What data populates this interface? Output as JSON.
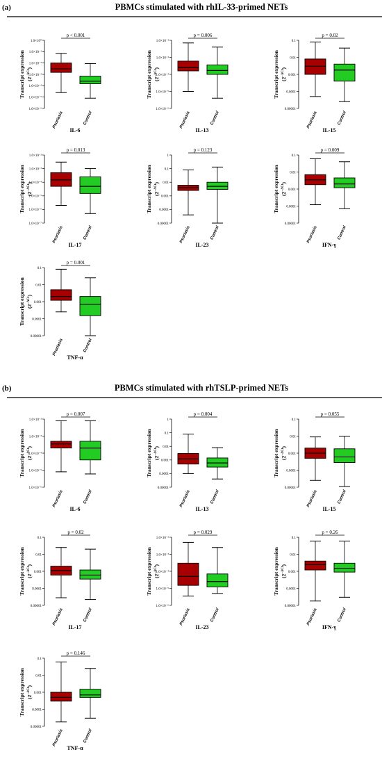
{
  "panels": [
    {
      "label": "(a)",
      "title": "PBMCs  stimulated with rhIL-33-primed NETs"
    },
    {
      "label": "(b)",
      "title": "PBMCs  stimulated with rhTSLP-primed NETs"
    }
  ],
  "chart_data": [
    {
      "type": "box",
      "title": "IL-6",
      "annotation": "p < 0.001",
      "ylabel": "Transcript expression",
      "ylabel_unit": [
        "(2",
        "−ΔCt",
        ")"
      ],
      "categories": [
        "Psoriasis",
        "Control"
      ],
      "colors": [
        "#a80000",
        "#22cc22"
      ],
      "log_scale": true,
      "low": [
        2.5e-05,
        8e-06
      ],
      "q1": [
        0.0015,
        0.00015
      ],
      "median": [
        0.003,
        0.00025
      ],
      "q3": [
        0.01,
        0.0007
      ],
      "high": [
        0.07,
        0.009
      ],
      "ylim": [
        1e-06,
        1
      ],
      "yticks": [
        {
          "value": 1,
          "label": "1.0×10⁰"
        },
        {
          "value": 0.1,
          "label": "1.0×10⁻¹"
        },
        {
          "value": 0.01,
          "label": "1.0×10⁻²"
        },
        {
          "value": 0.001,
          "label": "1.0×10⁻³"
        },
        {
          "value": 0.0001,
          "label": "1.0×10⁻⁴"
        },
        {
          "value": 1e-05,
          "label": "1.0×10⁻⁵"
        },
        {
          "value": 1e-06,
          "label": "1.0×10⁻⁶"
        }
      ]
    },
    {
      "type": "box",
      "title": "IL-13",
      "annotation": "p = 0.006",
      "ylabel": "Transcript expression",
      "ylabel_unit": [
        "(2",
        "−ΔCt",
        ")"
      ],
      "categories": [
        "Psoriasis",
        "Control"
      ],
      "colors": [
        "#a80000",
        "#22cc22"
      ],
      "log_scale": true,
      "low": [
        1e-05,
        4e-06
      ],
      "q1": [
        0.00016,
        0.0001
      ],
      "median": [
        0.00025,
        0.00017
      ],
      "q3": [
        0.0006,
        0.00036
      ],
      "high": [
        0.007,
        0.004
      ],
      "ylim": [
        1e-06,
        0.01
      ],
      "yticks": [
        {
          "value": 0.01,
          "label": "1.0×10⁻²"
        },
        {
          "value": 0.001,
          "label": "1.0×10⁻³"
        },
        {
          "value": 0.0001,
          "label": "1.0×10⁻⁴"
        },
        {
          "value": 1e-05,
          "label": "1.0×10⁻⁵"
        },
        {
          "value": 1e-06,
          "label": "1.0×10⁻⁶"
        }
      ]
    },
    {
      "type": "box",
      "title": "IL-15",
      "annotation": "p = 0.02",
      "ylabel": "Transcript expression",
      "ylabel_unit": [
        "(2",
        "−ΔCt",
        ")"
      ],
      "categories": [
        "Psoriasis",
        "Control"
      ],
      "colors": [
        "#a80000",
        "#22cc22"
      ],
      "log_scale": true,
      "low": [
        5e-05,
        2.5e-05
      ],
      "q1": [
        0.001,
        0.0004
      ],
      "median": [
        0.003,
        0.0018
      ],
      "q3": [
        0.008,
        0.004
      ],
      "high": [
        0.08,
        0.035
      ],
      "ylim": [
        1e-05,
        0.1
      ],
      "yticks": [
        0.1,
        0.01,
        0.001,
        0.0001,
        1e-05
      ]
    },
    {
      "type": "box",
      "title": "IL-17",
      "annotation": "p = 0.013",
      "ylabel": "Transcript expression",
      "ylabel_unit": [
        "(2",
        "−ΔCt",
        ")"
      ],
      "categories": [
        "Psoriasis",
        "Control"
      ],
      "colors": [
        "#a80000",
        "#22cc22"
      ],
      "log_scale": true,
      "low": [
        2e-06,
        5e-07
      ],
      "q1": [
        5e-05,
        1.5e-05
      ],
      "median": [
        0.00015,
        5e-05
      ],
      "q3": [
        0.0005,
        0.00025
      ],
      "high": [
        0.003,
        0.001
      ],
      "ylim": [
        1e-07,
        0.01
      ],
      "yticks": [
        {
          "value": 0.01,
          "label": "1.0×10⁻²"
        },
        {
          "value": 0.001,
          "label": "1.0×10⁻³"
        },
        {
          "value": 0.0001,
          "label": "1.0×10⁻⁴"
        },
        {
          "value": 1e-05,
          "label": "1.0×10⁻⁵"
        },
        {
          "value": 1e-06,
          "label": "1.0×10⁻⁶"
        },
        {
          "value": 1e-07,
          "label": "1.0×10⁻⁷"
        }
      ]
    },
    {
      "type": "box",
      "title": "IL-23",
      "annotation": "p = 0.123",
      "ylabel": "Transcript expression",
      "ylabel_unit": [
        "(2",
        "−ΔCt",
        ")"
      ],
      "categories": [
        "Psoriasis",
        "Control"
      ],
      "colors": [
        "#a80000",
        "#22cc22"
      ],
      "log_scale": true,
      "low": [
        4e-05,
        1e-05
      ],
      "q1": [
        0.0025,
        0.003
      ],
      "median": [
        0.004,
        0.005
      ],
      "q3": [
        0.006,
        0.01
      ],
      "high": [
        0.08,
        0.13
      ],
      "ylim": [
        1e-05,
        1
      ],
      "yticks": [
        1,
        0.1,
        0.01,
        0.001,
        0.0001,
        1e-05
      ]
    },
    {
      "type": "box",
      "title": "IFN-γ",
      "annotation": "p = 0.009",
      "ylabel": "Transcript expression",
      "ylabel_unit": [
        "(2",
        "−ΔCt",
        ")"
      ],
      "categories": [
        "Psoriasis",
        "Control"
      ],
      "colors": [
        "#a80000",
        "#22cc22"
      ],
      "log_scale": true,
      "low": [
        0.00012,
        7e-05
      ],
      "q1": [
        0.0018,
        0.0012
      ],
      "median": [
        0.0035,
        0.002
      ],
      "q3": [
        0.007,
        0.0045
      ],
      "high": [
        0.06,
        0.04
      ],
      "ylim": [
        1e-05,
        0.1
      ],
      "yticks": [
        0.1,
        0.01,
        0.001,
        0.0001,
        1e-05
      ]
    },
    {
      "type": "box",
      "title": "TNF-α",
      "annotation": "p = 0.001",
      "ylabel": "Transcript expression",
      "ylabel_unit": [
        "(2",
        "−ΔCt",
        ")"
      ],
      "categories": [
        "Psoriasis",
        "Control"
      ],
      "colors": [
        "#a80000",
        "#22cc22"
      ],
      "log_scale": true,
      "low": [
        0.00025,
        1e-05
      ],
      "q1": [
        0.0012,
        0.00015
      ],
      "median": [
        0.002,
        0.0007
      ],
      "q3": [
        0.005,
        0.002
      ],
      "high": [
        0.08,
        0.025
      ],
      "ylim": [
        1e-05,
        0.1
      ],
      "yticks": [
        0.1,
        0.01,
        0.001,
        0.0001,
        1e-05
      ]
    },
    {
      "type": "box",
      "title": "IL-6",
      "annotation": "p = 0.007",
      "ylabel": "Transcript expression",
      "ylabel_unit": [
        "(2",
        "−ΔCt",
        ")"
      ],
      "categories": [
        "Psoriasis",
        "Control"
      ],
      "colors": [
        "#a80000",
        "#22cc22"
      ],
      "log_scale": true,
      "low": [
        8e-06,
        6e-06
      ],
      "q1": [
        0.0002,
        4e-05
      ],
      "median": [
        0.00035,
        0.0002
      ],
      "q3": [
        0.0005,
        0.0005
      ],
      "high": [
        0.008,
        0.008
      ],
      "ylim": [
        1e-06,
        0.01
      ],
      "yticks": [
        {
          "value": 0.01,
          "label": "1.0×10⁻²"
        },
        {
          "value": 0.001,
          "label": "1.0×10⁻³"
        },
        {
          "value": 0.0001,
          "label": "1.0×10⁻⁴"
        },
        {
          "value": 1e-05,
          "label": "1.0×10⁻⁵"
        },
        {
          "value": 1e-06,
          "label": "1.0×10⁻⁶"
        }
      ]
    },
    {
      "type": "box",
      "title": "IL-13",
      "annotation": "p = 0.004",
      "ylabel": "Transcript expression",
      "ylabel_unit": [
        "(2",
        "−ΔCt",
        ")"
      ],
      "categories": [
        "Psoriasis",
        "Control"
      ],
      "colors": [
        "#a80000",
        "#22cc22"
      ],
      "log_scale": true,
      "low": [
        0.0001,
        4e-05
      ],
      "q1": [
        0.0005,
        0.0003
      ],
      "median": [
        0.0012,
        0.0006
      ],
      "q3": [
        0.003,
        0.0014
      ],
      "high": [
        0.08,
        0.008
      ],
      "ylim": [
        1e-05,
        1
      ],
      "yticks": [
        1,
        0.1,
        0.01,
        0.001,
        0.0001,
        1e-05
      ]
    },
    {
      "type": "box",
      "title": "IL-15",
      "annotation": "p = 0.055",
      "ylabel": "Transcript expression",
      "ylabel_unit": [
        "(2",
        "−ΔCt",
        ")"
      ],
      "categories": [
        "Psoriasis",
        "Control"
      ],
      "colors": [
        "#a80000",
        "#22cc22"
      ],
      "log_scale": true,
      "low": [
        2.5e-05,
        1.1e-05
      ],
      "q1": [
        0.0005,
        0.00028
      ],
      "median": [
        0.001,
        0.0006
      ],
      "q3": [
        0.002,
        0.0018
      ],
      "high": [
        0.009,
        0.01
      ],
      "ylim": [
        1e-05,
        0.1
      ],
      "yticks": [
        0.1,
        0.01,
        0.001,
        0.0001,
        1e-05
      ]
    },
    {
      "type": "box",
      "title": "IL-17",
      "annotation": "p = 0.02",
      "ylabel": "Transcript expression",
      "ylabel_unit": [
        "(2",
        "−ΔCt",
        ")"
      ],
      "categories": [
        "Psoriasis",
        "Control"
      ],
      "colors": [
        "#a80000",
        "#22cc22"
      ],
      "log_scale": true,
      "low": [
        2.8e-05,
        2.2e-05
      ],
      "q1": [
        0.0006,
        0.00035
      ],
      "median": [
        0.0011,
        0.0006
      ],
      "q3": [
        0.002,
        0.0012
      ],
      "high": [
        0.025,
        0.02
      ],
      "ylim": [
        1e-05,
        0.1
      ],
      "yticks": [
        0.1,
        0.01,
        0.001,
        0.0001,
        1e-05
      ]
    },
    {
      "type": "box",
      "title": "IL-23",
      "annotation": "p = 0.029",
      "ylabel": "Transcript expression",
      "ylabel_unit": [
        "(2",
        "−ΔCt",
        ")"
      ],
      "categories": [
        "Psoriasis",
        "Control"
      ],
      "colors": [
        "#a80000",
        "#22cc22"
      ],
      "log_scale": true,
      "low": [
        3.5e-06,
        5e-06
      ],
      "q1": [
        1.5e-05,
        1.2e-05
      ],
      "median": [
        5e-05,
        2.5e-05
      ],
      "q3": [
        0.0003,
        7e-05
      ],
      "high": [
        0.005,
        0.0025
      ],
      "ylim": [
        1e-06,
        0.01
      ],
      "yticks": [
        {
          "value": 0.01,
          "label": "1.0×10⁻²"
        },
        {
          "value": 0.001,
          "label": "1.0×10⁻³"
        },
        {
          "value": 0.0001,
          "label": "1.0×10⁻⁴"
        },
        {
          "value": 1e-05,
          "label": "1.0×10⁻⁵"
        },
        {
          "value": 1e-06,
          "label": "1.0×10⁻⁶"
        }
      ]
    },
    {
      "type": "box",
      "title": "IFN-γ",
      "annotation": "p = 0.26",
      "ylabel": "Transcript expression",
      "ylabel_unit": [
        "(2",
        "−ΔCt",
        ")"
      ],
      "categories": [
        "Psoriasis",
        "Control"
      ],
      "colors": [
        "#a80000",
        "#22cc22"
      ],
      "log_scale": true,
      "low": [
        1.8e-05,
        3e-05
      ],
      "q1": [
        0.0012,
        0.0009
      ],
      "median": [
        0.0025,
        0.0015
      ],
      "q3": [
        0.004,
        0.003
      ],
      "high": [
        0.06,
        0.06
      ],
      "ylim": [
        1e-05,
        0.1
      ],
      "yticks": [
        0.1,
        0.01,
        0.001,
        0.0001,
        1e-05
      ]
    },
    {
      "type": "box",
      "title": "TNF-α",
      "annotation": "p = 0.146",
      "ylabel": "Transcript expression",
      "ylabel_unit": [
        "(2",
        "−ΔCt",
        ")"
      ],
      "categories": [
        "Psoriasis",
        "Control"
      ],
      "colors": [
        "#a80000",
        "#22cc22"
      ],
      "log_scale": true,
      "low": [
        1.8e-05,
        3e-05
      ],
      "q1": [
        0.0003,
        0.0005
      ],
      "median": [
        0.0005,
        0.0007
      ],
      "q3": [
        0.001,
        0.0015
      ],
      "high": [
        0.06,
        0.025
      ],
      "ylim": [
        1e-05,
        0.1
      ],
      "yticks": [
        0.1,
        0.01,
        0.001,
        0.0001,
        1e-05
      ]
    }
  ]
}
